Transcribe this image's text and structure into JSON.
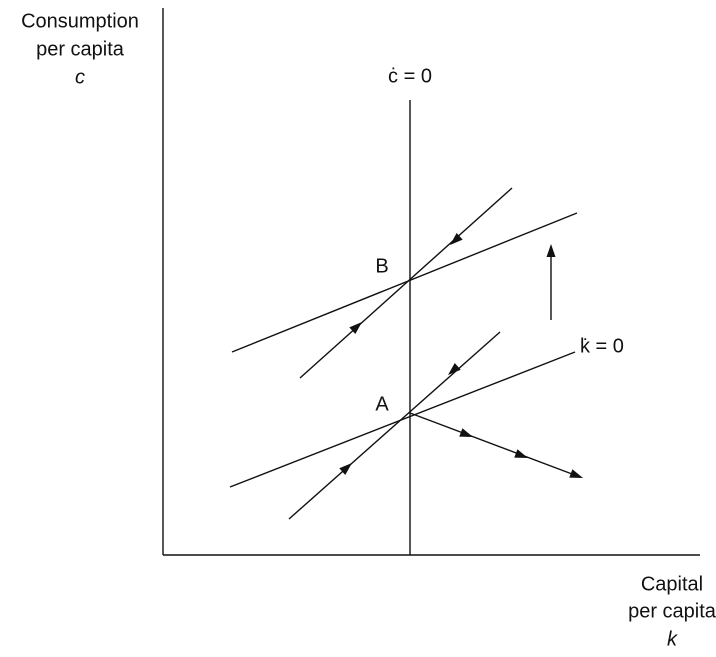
{
  "y_axis_label": [
    "Consumption",
    "per capita",
    "c"
  ],
  "x_axis_label": [
    "Capital",
    "per capita",
    "k"
  ],
  "c_dot_label": "ċ = 0",
  "k_dot_label": "k̇ = 0",
  "point_a": "A",
  "point_b": "B"
}
